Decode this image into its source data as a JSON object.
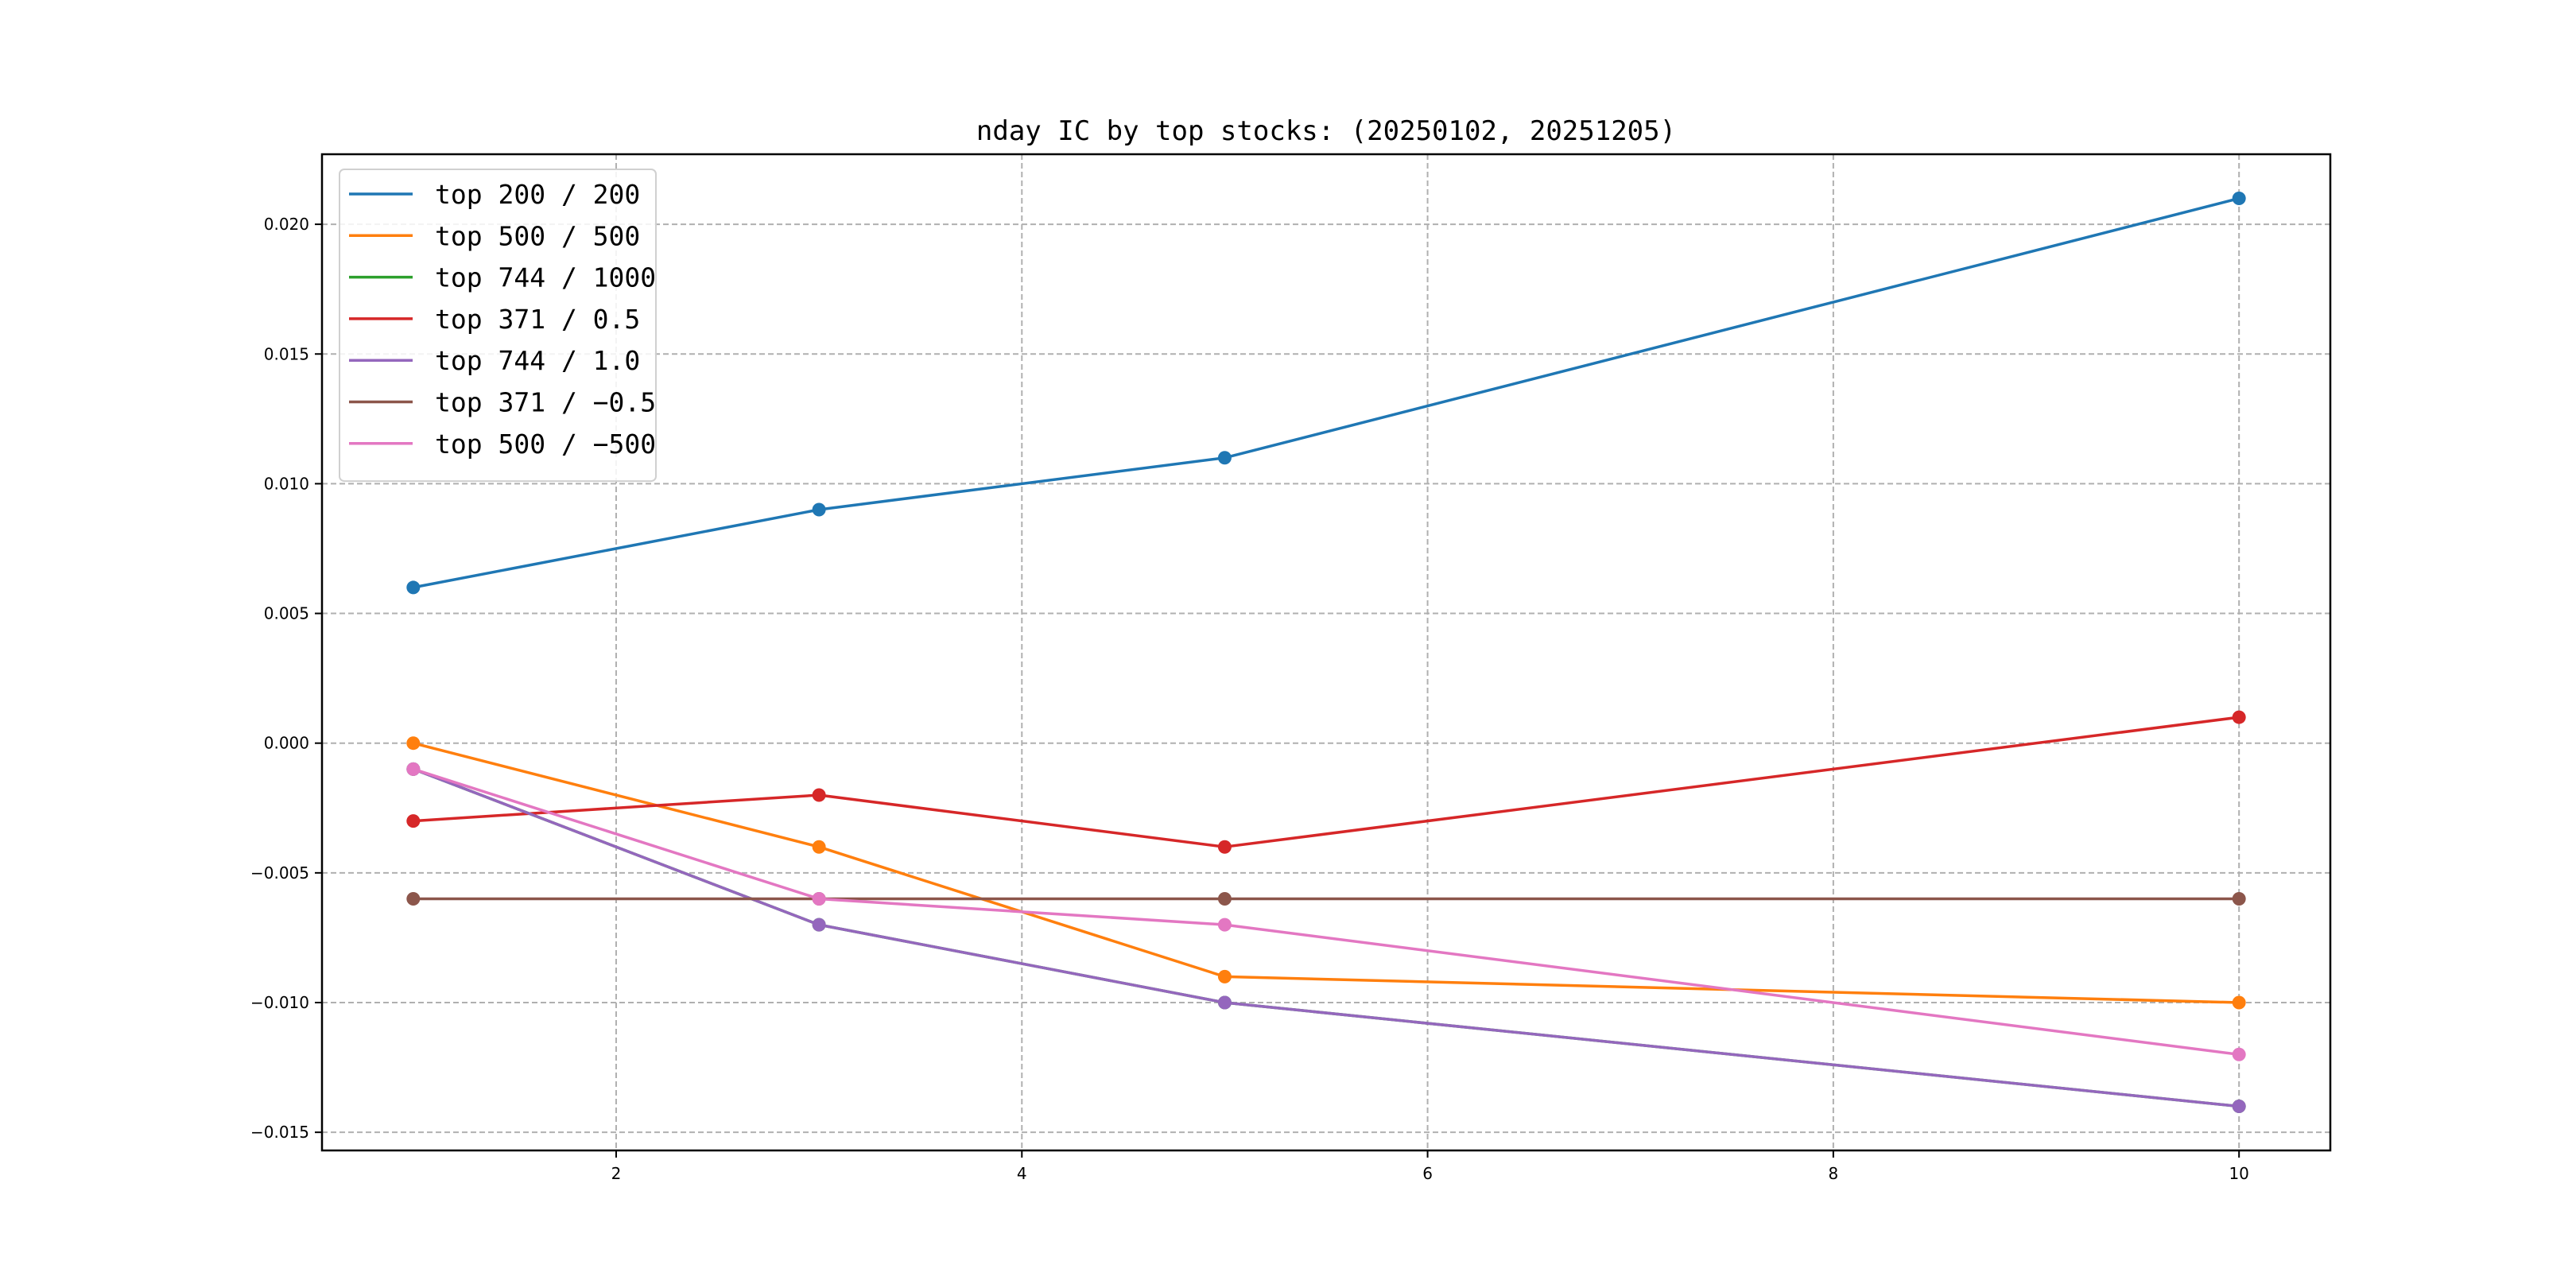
{
  "chart_data": {
    "type": "line",
    "title": "nday IC by top stocks: (20250102, 20251205)",
    "xlabel": "",
    "ylabel": "",
    "x": [
      1,
      3,
      5,
      10
    ],
    "xlim": [
      0.55,
      10.45
    ],
    "ylim": [
      -0.0157,
      0.0227
    ],
    "xticks": [
      2,
      4,
      6,
      8,
      10
    ],
    "xtick_labels": [
      "2",
      "4",
      "6",
      "8",
      "10"
    ],
    "yticks": [
      -0.015,
      -0.01,
      -0.005,
      0.0,
      0.005,
      0.01,
      0.015,
      0.02
    ],
    "ytick_labels": [
      "−0.015",
      "−0.010",
      "−0.005",
      "0.000",
      "0.005",
      "0.010",
      "0.015",
      "0.020"
    ],
    "grid": true,
    "legend_position": "top-left",
    "series": [
      {
        "name": "top 200 / 200",
        "color": "#1f77b4",
        "values": [
          0.006,
          0.009,
          0.011,
          0.021
        ]
      },
      {
        "name": "top 500 / 500",
        "color": "#ff7f0e",
        "values": [
          0.0,
          -0.004,
          -0.009,
          -0.01
        ]
      },
      {
        "name": "top 744 / 1000",
        "color": "#2ca02c",
        "values": [
          -0.001,
          -0.007,
          -0.01,
          -0.014
        ]
      },
      {
        "name": "top 371 / 0.5",
        "color": "#d62728",
        "values": [
          -0.003,
          -0.002,
          -0.004,
          0.001
        ]
      },
      {
        "name": "top 744 / 1.0",
        "color": "#9467bd",
        "values": [
          -0.001,
          -0.007,
          -0.01,
          -0.014
        ]
      },
      {
        "name": "top 371 / −0.5",
        "color": "#8c564b",
        "values": [
          -0.006,
          -0.006,
          -0.006,
          -0.006
        ]
      },
      {
        "name": "top 500 / −500",
        "color": "#e377c2",
        "values": [
          -0.001,
          -0.006,
          -0.007,
          -0.012
        ]
      }
    ]
  }
}
